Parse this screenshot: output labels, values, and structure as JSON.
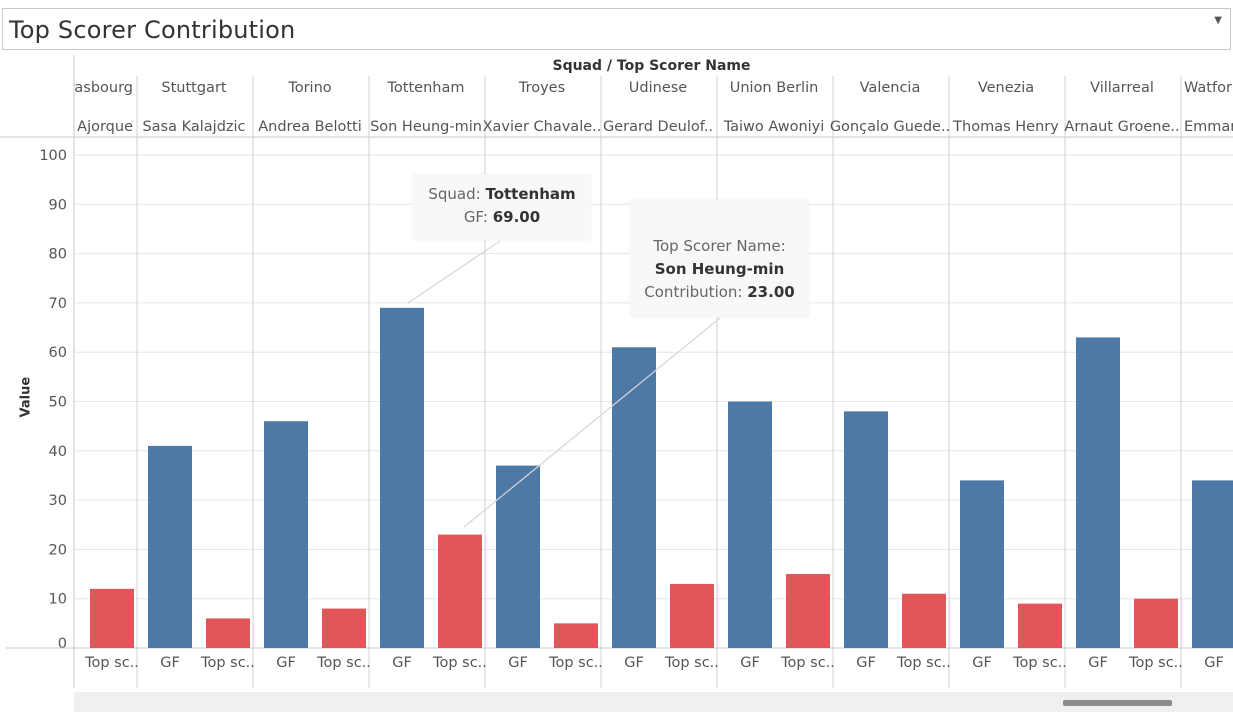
{
  "title": "Top Scorer Contribution",
  "header_title": "Squad  /  Top Scorer Name",
  "y_axis_label": "Value",
  "colors": {
    "gf": "#4e79a7",
    "contribution": "#e15759",
    "grid": "#e6e6e6",
    "divider": "#d0d0d0"
  },
  "chart_data": {
    "type": "bar",
    "ylabel": "Value",
    "ylim": [
      0,
      100
    ],
    "yticks": [
      0,
      10,
      20,
      30,
      40,
      50,
      60,
      70,
      80,
      90,
      100
    ],
    "measure_labels": {
      "gf": "GF",
      "contribution": "Top sc.."
    },
    "squads": [
      {
        "squad": "rasbourg",
        "scorer": "Ajorque",
        "gf": null,
        "contribution": 12
      },
      {
        "squad": "Stuttgart",
        "scorer": "Sasa Kalajdzic",
        "gf": 41,
        "contribution": 6
      },
      {
        "squad": "Torino",
        "scorer": "Andrea Belotti",
        "gf": 46,
        "contribution": 8
      },
      {
        "squad": "Tottenham",
        "scorer": "Son Heung-min",
        "gf": 69,
        "contribution": 23
      },
      {
        "squad": "Troyes",
        "scorer": "Xavier Chavale..",
        "gf": 37,
        "contribution": 5
      },
      {
        "squad": "Udinese",
        "scorer": "Gerard Deulof..",
        "gf": 61,
        "contribution": 13
      },
      {
        "squad": "Union Berlin",
        "scorer": "Taiwo Awoniyi",
        "gf": 50,
        "contribution": 15
      },
      {
        "squad": "Valencia",
        "scorer": "Gonçalo Guede..",
        "gf": 48,
        "contribution": 11
      },
      {
        "squad": "Venezia",
        "scorer": "Thomas Henry",
        "gf": 34,
        "contribution": 9
      },
      {
        "squad": "Villarreal",
        "scorer": "Arnaut Groene..",
        "gf": 63,
        "contribution": 10
      },
      {
        "squad": "Watfor",
        "scorer": "Emmar",
        "gf": 34,
        "contribution": null
      }
    ]
  },
  "tooltip_gf": {
    "label1": "Squad: ",
    "value1": "Tottenham",
    "label2": "GF: ",
    "value2": "69.00"
  },
  "tooltip_contrib": {
    "line1": "Top Scorer Name:",
    "line2": "Son Heung-min",
    "label3": "Contribution: ",
    "value3": "23.00"
  }
}
